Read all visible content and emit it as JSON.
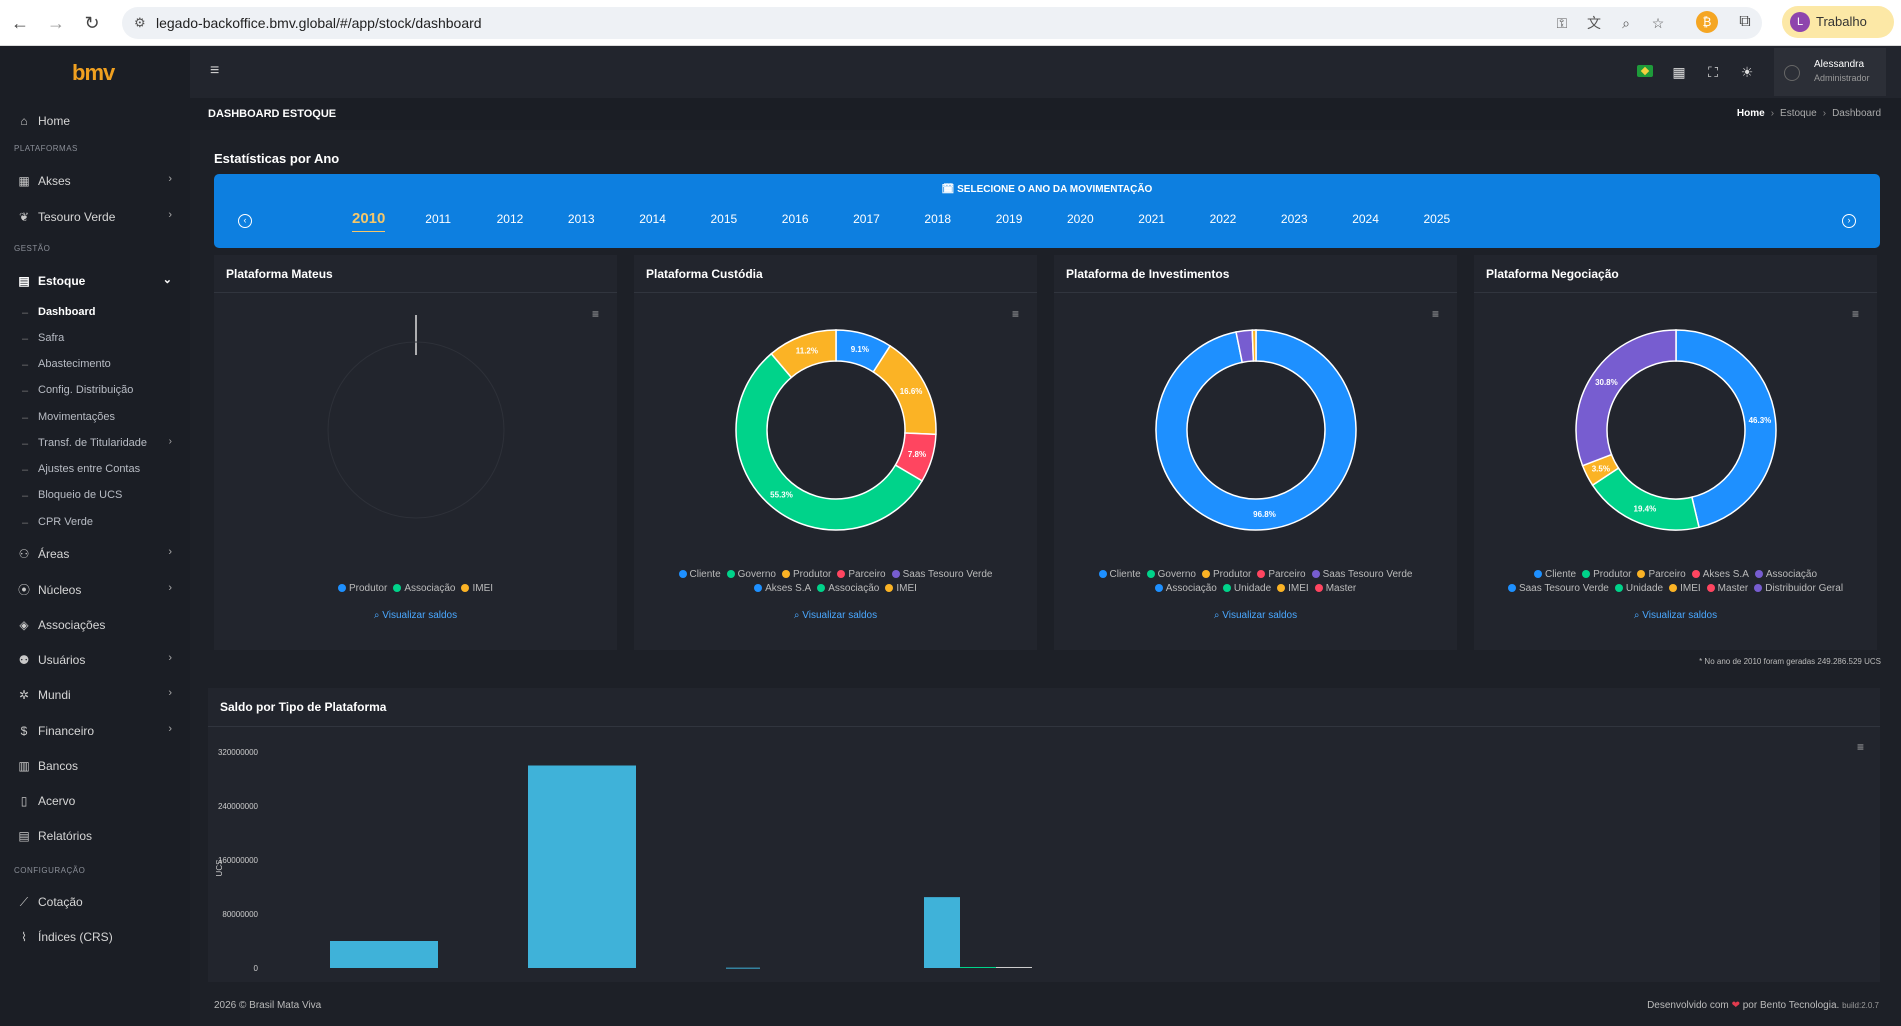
{
  "browser": {
    "url": "legado-backoffice.bmv.global/#/app/stock/dashboard",
    "profile_initial": "L",
    "profile_label": "Trabalho"
  },
  "sidebar": {
    "logo": "bmv",
    "items": [
      {
        "label": "Home",
        "icon": "home-icon"
      },
      {
        "section": "PLATAFORMAS"
      },
      {
        "label": "Akses",
        "icon": "grid-icon",
        "chevron": true
      },
      {
        "label": "Tesouro Verde",
        "icon": "leaf-icon",
        "chevron": true
      },
      {
        "section": "GESTÃO"
      },
      {
        "label": "Estoque",
        "icon": "box-icon",
        "expanded": true
      }
    ],
    "home": "Home",
    "sec_plataformas": "PLATAFORMAS",
    "akses": "Akses",
    "tesouro_verde": "Tesouro Verde",
    "sec_gestao": "GESTÃO",
    "estoque": "Estoque",
    "sub": [
      "Dashboard",
      "Safra",
      "Abastecimento",
      "Config. Distribuição",
      "Movimentações",
      "Transf. de Titularidade",
      "Ajustes entre Contas",
      "Bloqueio de UCS",
      "CPR Verde"
    ],
    "areas": "Áreas",
    "nucleos": "Núcleos",
    "associacoes": "Associações",
    "usuarios": "Usuários",
    "mundi": "Mundi",
    "financeiro": "Financeiro",
    "bancos": "Bancos",
    "acervo": "Acervo",
    "relatorios": "Relatórios",
    "sec_config": "CONFIGURAÇÃO",
    "cotacao": "Cotação",
    "indices": "Índices (CRS)"
  },
  "header": {
    "user_name": "Alessandra",
    "user_role": "Administrador"
  },
  "page": {
    "title": "DASHBOARD ESTOQUE",
    "breadcrumb": [
      "Home",
      "Estoque",
      "Dashboard"
    ],
    "stats_title": "Estatísticas por Ano",
    "year_select_label": "🗓 SELECIONE O ANO DA MOVIMENTAÇÃO",
    "years": [
      "2010",
      "2011",
      "2012",
      "2013",
      "2014",
      "2015",
      "2016",
      "2017",
      "2018",
      "2019",
      "2020",
      "2021",
      "2022",
      "2023",
      "2024",
      "2025"
    ],
    "selected_year": "2010",
    "visualizar": "Visualizar saldos",
    "footnote": "* No ano de 2010 foram geradas 249.286.529 UCS"
  },
  "colors": {
    "blue": "#1e90ff",
    "green": "#00d38a",
    "orange": "#fbb325",
    "red": "#ff4560",
    "purple": "#775dd0",
    "bar": "#3fb2d9"
  },
  "platforms": [
    {
      "title": "Plataforma Mateus",
      "legend": [
        [
          "Produtor",
          "#1e90ff"
        ],
        [
          "Associação",
          "#00d38a"
        ],
        [
          "IMEI",
          "#fbb325"
        ]
      ],
      "slices": []
    },
    {
      "title": "Plataforma Custódia",
      "legend": [
        [
          "Cliente",
          "#1e90ff"
        ],
        [
          "Governo",
          "#00d38a"
        ],
        [
          "Produtor",
          "#fbb325"
        ],
        [
          "Parceiro",
          "#ff4560"
        ],
        [
          "Saas Tesouro Verde",
          "#775dd0"
        ],
        [
          "Akses S.A",
          "#1e90ff"
        ],
        [
          "Associação",
          "#00d38a"
        ],
        [
          "IMEI",
          "#fbb325"
        ]
      ],
      "slices": [
        {
          "value": 9.1,
          "color": "#1e90ff",
          "label": "9.1%"
        },
        {
          "value": 16.6,
          "color": "#fbb325",
          "label": "16.6%"
        },
        {
          "value": 7.8,
          "color": "#ff4560",
          "label": "7.8%"
        },
        {
          "value": 55.3,
          "color": "#00d38a",
          "label": "55.3%"
        },
        {
          "value": 11.2,
          "color": "#fbb325",
          "label": "11.2%"
        }
      ]
    },
    {
      "title": "Plataforma de Investimentos",
      "legend": [
        [
          "Cliente",
          "#1e90ff"
        ],
        [
          "Governo",
          "#00d38a"
        ],
        [
          "Produtor",
          "#fbb325"
        ],
        [
          "Parceiro",
          "#ff4560"
        ],
        [
          "Saas Tesouro Verde",
          "#775dd0"
        ],
        [
          "Associação",
          "#1e90ff"
        ],
        [
          "Unidade",
          "#00d38a"
        ],
        [
          "IMEI",
          "#fbb325"
        ],
        [
          "Master",
          "#ff4560"
        ]
      ],
      "slices": [
        {
          "value": 96.8,
          "color": "#1e90ff",
          "label": "96.8%"
        },
        {
          "value": 2.6,
          "color": "#775dd0",
          "label": ""
        },
        {
          "value": 0.6,
          "color": "#fbb325",
          "label": ""
        }
      ]
    },
    {
      "title": "Plataforma Negociação",
      "legend": [
        [
          "Cliente",
          "#1e90ff"
        ],
        [
          "Produtor",
          "#00d38a"
        ],
        [
          "Parceiro",
          "#fbb325"
        ],
        [
          "Akses S.A",
          "#ff4560"
        ],
        [
          "Associação",
          "#775dd0"
        ],
        [
          "Saas Tesouro Verde",
          "#1e90ff"
        ],
        [
          "Unidade",
          "#00d38a"
        ],
        [
          "IMEI",
          "#fbb325"
        ],
        [
          "Master",
          "#ff4560"
        ],
        [
          "Distribuidor Geral",
          "#775dd0"
        ]
      ],
      "slices": [
        {
          "value": 46.3,
          "color": "#1e90ff",
          "label": "46.3%"
        },
        {
          "value": 19.4,
          "color": "#00d38a",
          "label": "19.4%"
        },
        {
          "value": 3.5,
          "color": "#fbb325",
          "label": "3.5%"
        },
        {
          "value": 30.8,
          "color": "#775dd0",
          "label": "30.8%"
        }
      ]
    }
  ],
  "chart_data": {
    "type": "bar",
    "title": "Saldo por Tipo de Plataforma",
    "ylabel": "UCS",
    "ylim": [
      0,
      320000000
    ],
    "yticks": [
      "320000000",
      "240000000",
      "160000000",
      "80000000",
      "0"
    ],
    "values": [
      40000000,
      300000000,
      500000,
      105000000,
      1500000,
      1500000
    ],
    "colors": [
      "#3fb2d9",
      "#3fb2d9",
      "#3fb2d9",
      "#3fb2d9",
      "#00d38a",
      "#cccccc"
    ]
  },
  "footer": {
    "copy": "2026 © Brasil Mata Viva",
    "dev_pre": "Desenvolvido com",
    "heart": "❤",
    "dev_post": "por Bento Tecnologia.",
    "build": "build:2.0.7"
  }
}
